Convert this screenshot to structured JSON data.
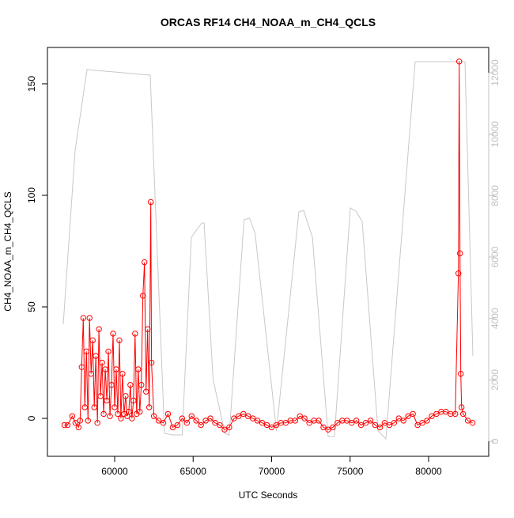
{
  "chart_data": {
    "type": "line",
    "title": "ORCAS RF14 CH4_NOAA_m_CH4_QCLS",
    "x_label": "UTC Seconds",
    "y_label": "CH4_NOAA_m_CH4_QCLS",
    "xlim": [
      55718,
      83829
    ],
    "xticks": [
      60000,
      65000,
      70000,
      75000,
      80000
    ],
    "ylim": [
      -17,
      166.3
    ],
    "yticks": [
      0,
      50,
      100,
      150
    ],
    "y2lim": [
      -489,
      12825
    ],
    "y2ticks": [
      0,
      2000,
      4000,
      6000,
      8000,
      10000,
      12000
    ],
    "series": [
      {
        "color": "#c8c8c8",
        "axis": "y2",
        "markers": false,
        "x": [
          56726,
          57482,
          58237,
          62268,
          63175,
          63700,
          64300,
          64887,
          65542,
          65700,
          66270,
          67026,
          67300,
          68240,
          68593,
          68946,
          70305,
          71733,
          72036,
          72600,
          73601,
          74000,
          75013,
          75370,
          75770,
          76776,
          77280,
          79144,
          82318,
          82822
        ],
        "values": [
          3811,
          9477,
          12104,
          11924,
          257,
          206,
          206,
          6644,
          7108,
          7108,
          2009,
          257,
          206,
          7211,
          7262,
          6773,
          335,
          7468,
          7520,
          6644,
          155,
          155,
          7597,
          7494,
          7160,
          335,
          77,
          12361,
          12361,
          2781
        ]
      },
      {
        "color": "#ff0000",
        "markers": true,
        "x": [
          56800,
          57000,
          57300,
          57500,
          57700,
          57800,
          57900,
          58000,
          58100,
          58200,
          58300,
          58400,
          58500,
          58600,
          58700,
          58800,
          58900,
          59000,
          59100,
          59200,
          59300,
          59400,
          59500,
          59600,
          59700,
          59800,
          59900,
          60000,
          60100,
          60200,
          60300,
          60400,
          60500,
          60600,
          60700,
          60800,
          60900,
          61000,
          61100,
          61200,
          61300,
          61400,
          61500,
          61600,
          61700,
          61800,
          61900,
          62000,
          62100,
          62200,
          62300,
          62350,
          62500,
          62800,
          63100,
          63400,
          63700,
          64000,
          64300,
          64600,
          64900,
          65200,
          65500,
          65800,
          66100,
          66400,
          66700,
          67000,
          67300,
          67600,
          67900,
          68200,
          68500,
          68800,
          69100,
          69400,
          69700,
          70000,
          70300,
          70600,
          70900,
          71200,
          71500,
          71800,
          72100,
          72400,
          72700,
          73000,
          73300,
          73600,
          73900,
          74200,
          74500,
          74800,
          75100,
          75400,
          75700,
          76000,
          76300,
          76600,
          76900,
          77200,
          77500,
          77800,
          78100,
          78400,
          78700,
          79000,
          79300,
          79600,
          79900,
          80200,
          80500,
          80800,
          81100,
          81400,
          81700,
          81900,
          81950,
          82000,
          82050,
          82100,
          82200,
          82500,
          82800
        ],
        "values": [
          -3,
          -3,
          1,
          -2,
          -4,
          -1,
          23,
          45,
          5,
          30,
          -1,
          45,
          20,
          35,
          5,
          28,
          -2,
          40,
          10,
          25,
          2,
          22,
          8,
          30,
          1,
          15,
          38,
          5,
          22,
          2,
          35,
          0,
          20,
          2,
          10,
          1,
          3,
          15,
          0,
          8,
          38,
          2,
          22,
          3,
          15,
          55,
          70,
          12,
          40,
          5,
          97,
          25,
          1,
          -1,
          -2,
          2,
          -4,
          -3,
          0,
          -2,
          1,
          -1,
          -3,
          -1,
          0,
          -2,
          -3,
          -5,
          -4,
          0,
          1,
          2,
          1,
          0,
          -1,
          -2,
          -3,
          -4,
          -3,
          -2,
          -2,
          -1,
          -1,
          1,
          0,
          -2,
          -1,
          -1,
          -4,
          -5,
          -4,
          -2,
          -1,
          -1,
          -2,
          -1,
          -3,
          -2,
          -1,
          -3,
          -4,
          -2,
          -3,
          -2,
          0,
          -1,
          1,
          2,
          -3,
          -2,
          -1,
          1,
          2,
          3,
          3,
          2,
          2,
          65,
          160,
          74,
          20,
          5,
          2,
          -1,
          -2
        ]
      }
    ]
  }
}
